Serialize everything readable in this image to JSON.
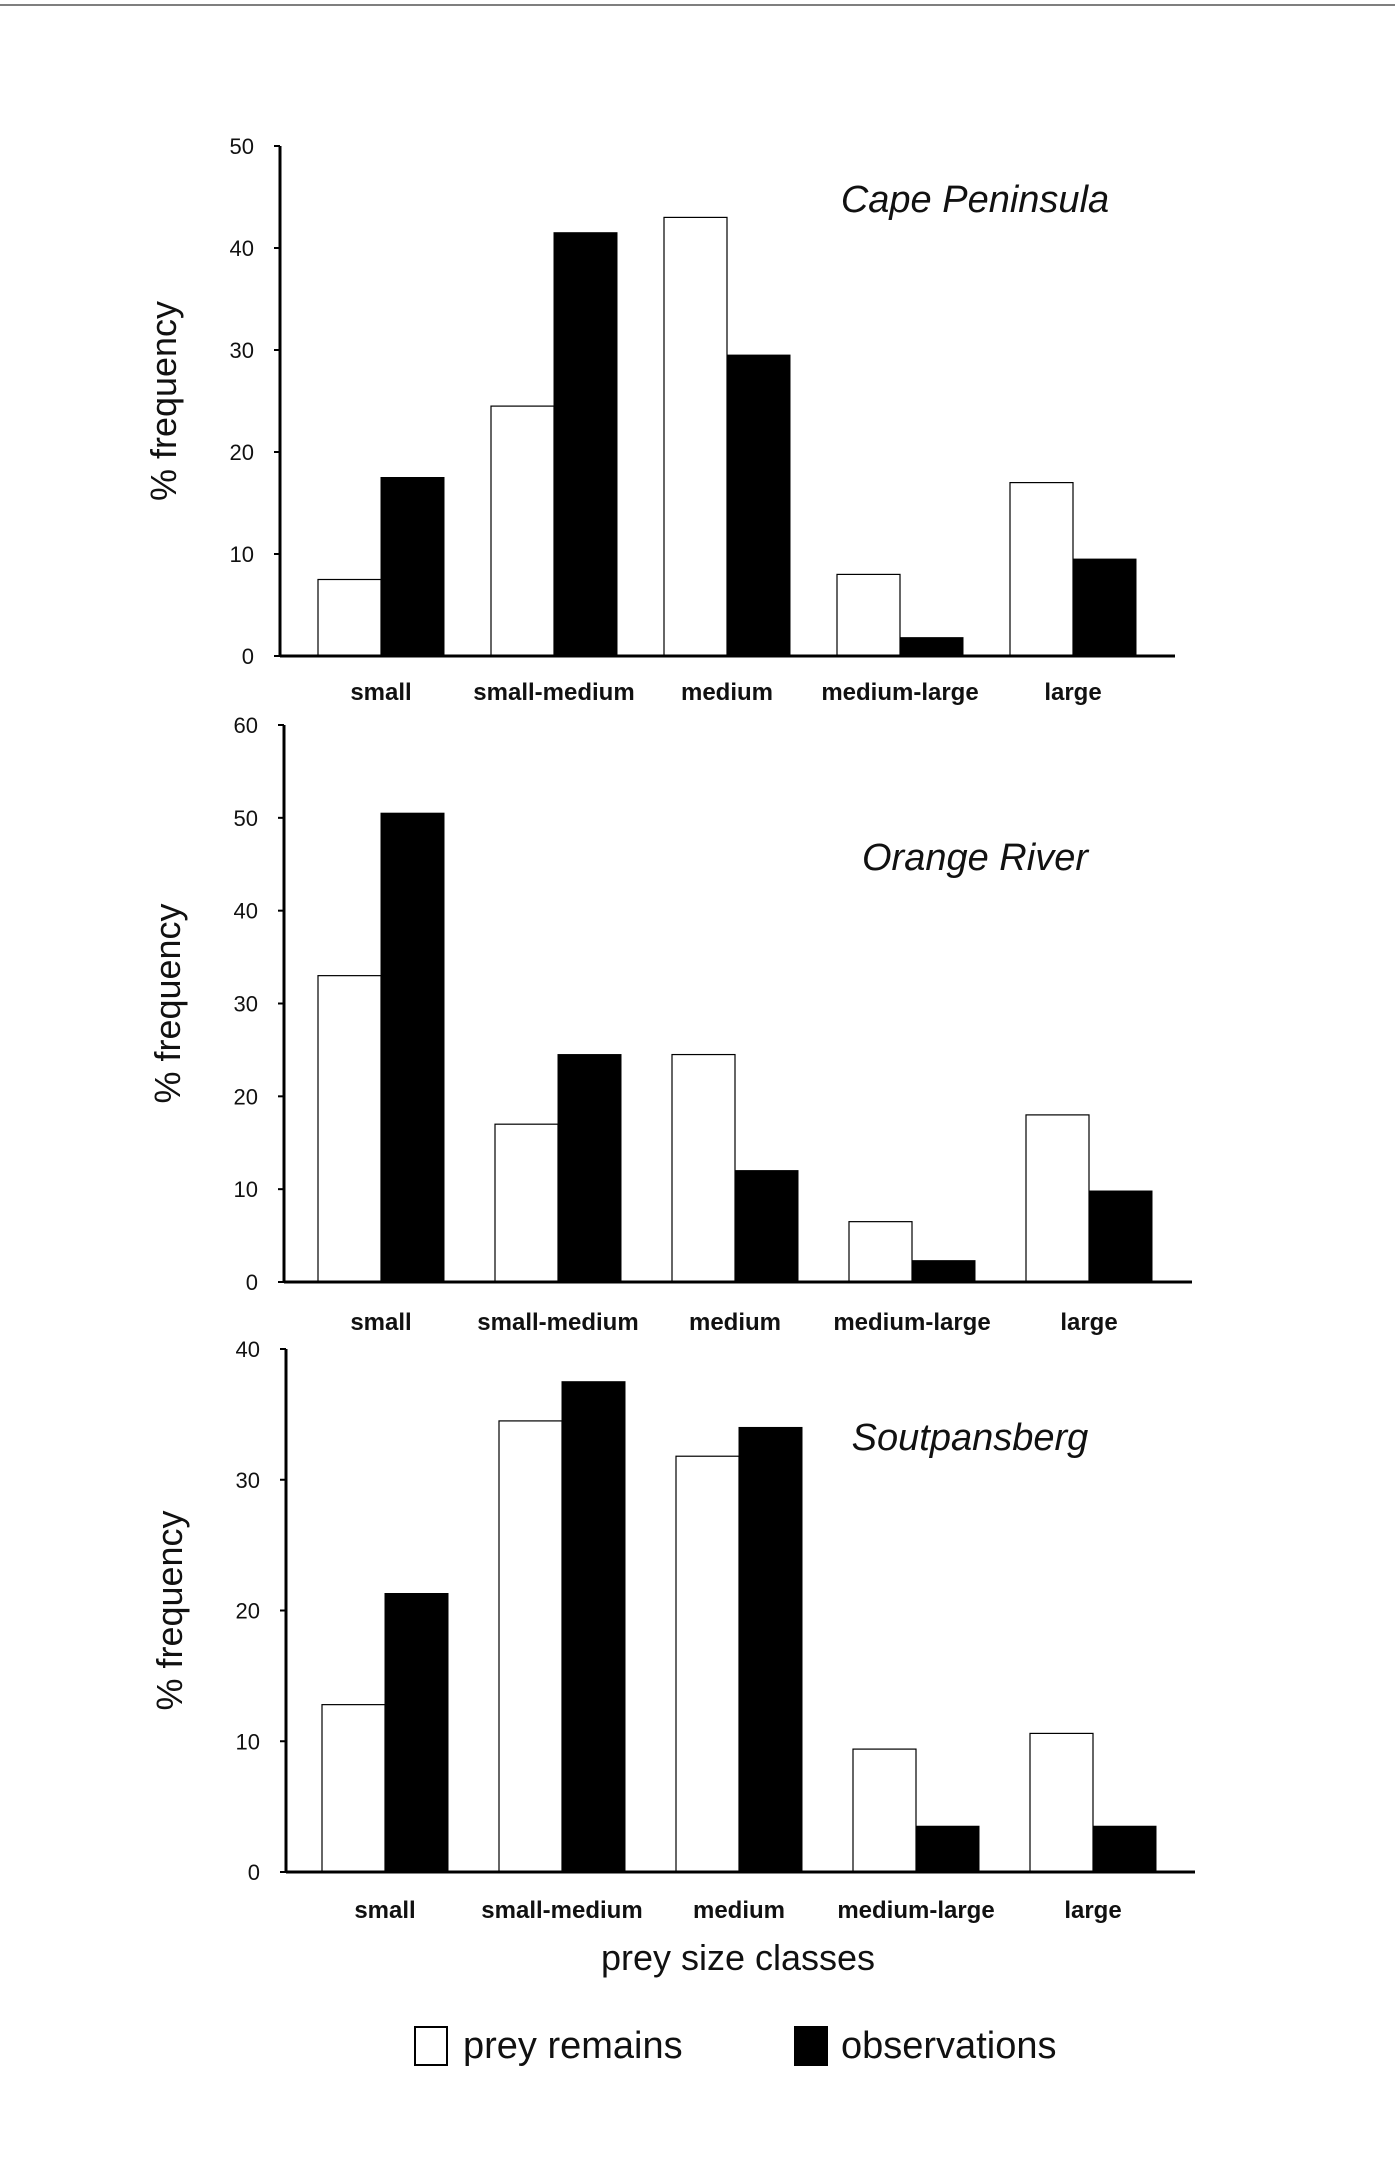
{
  "chart_data": [
    {
      "type": "bar",
      "title": "Cape Peninsula",
      "ylabel": "% frequency",
      "xlabel": "",
      "ylim": [
        0,
        50
      ],
      "yticks": [
        0,
        10,
        20,
        30,
        40,
        50
      ],
      "categories": [
        "small",
        "small-medium",
        "medium",
        "medium-large",
        "large"
      ],
      "series": [
        {
          "name": "prey remains",
          "values": [
            7.5,
            24.5,
            43,
            8,
            17
          ],
          "color": "#ffffff"
        },
        {
          "name": "observations",
          "values": [
            17.5,
            41.5,
            29.5,
            1.8,
            9.5
          ],
          "color": "#000000"
        }
      ]
    },
    {
      "type": "bar",
      "title": "Orange River",
      "ylabel": "% frequency",
      "xlabel": "",
      "ylim": [
        0,
        60
      ],
      "yticks": [
        0,
        10,
        20,
        30,
        40,
        50,
        60
      ],
      "categories": [
        "small",
        "small-medium",
        "medium",
        "medium-large",
        "large"
      ],
      "series": [
        {
          "name": "prey remains",
          "values": [
            33,
            17,
            24.5,
            6.5,
            18
          ],
          "color": "#ffffff"
        },
        {
          "name": "observations",
          "values": [
            50.5,
            24.5,
            12,
            2.3,
            9.8
          ],
          "color": "#000000"
        }
      ]
    },
    {
      "type": "bar",
      "title": "Soutpansberg",
      "ylabel": "% frequency",
      "xlabel": "prey size classes",
      "ylim": [
        0,
        40
      ],
      "yticks": [
        0,
        10,
        20,
        30,
        40
      ],
      "categories": [
        "small",
        "small-medium",
        "medium",
        "medium-large",
        "large"
      ],
      "series": [
        {
          "name": "prey remains",
          "values": [
            12.8,
            34.5,
            31.8,
            9.4,
            10.6
          ],
          "color": "#ffffff"
        },
        {
          "name": "observations",
          "values": [
            21.3,
            37.5,
            34,
            3.5,
            3.5
          ],
          "color": "#000000"
        }
      ]
    }
  ],
  "legend": {
    "items": [
      {
        "label": "prey remains",
        "color": "#ffffff"
      },
      {
        "label": "observations",
        "color": "#000000"
      }
    ],
    "placement": "bottom-center"
  }
}
